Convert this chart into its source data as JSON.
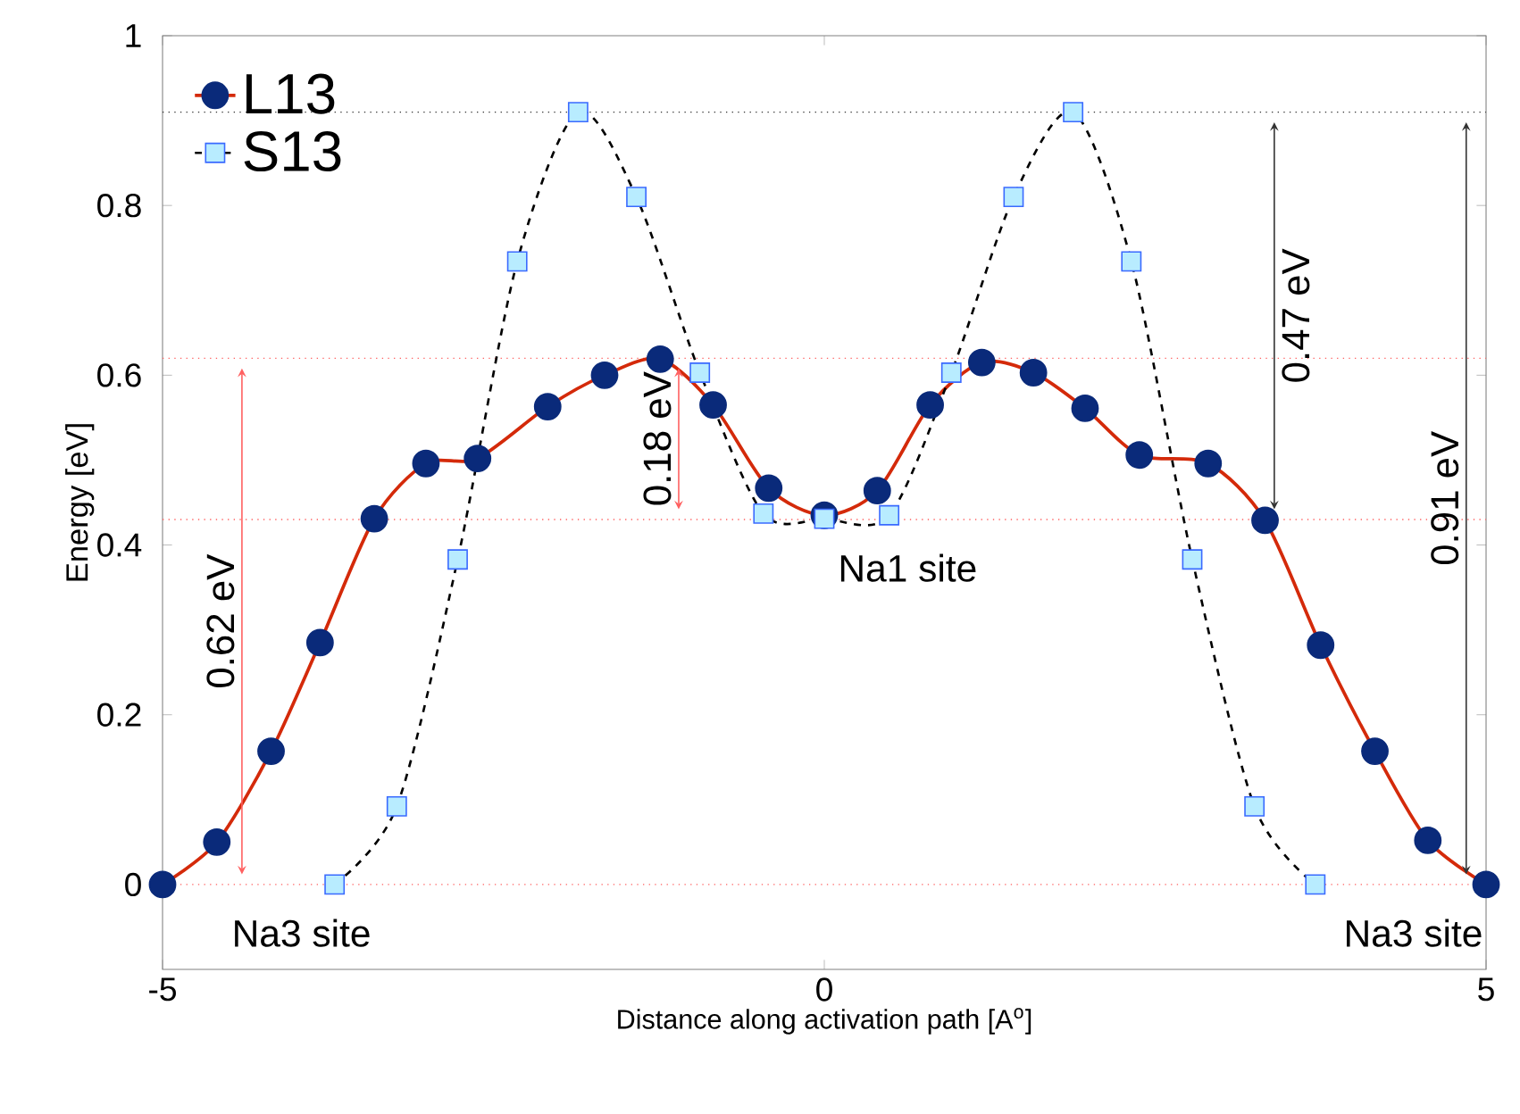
{
  "chart_data": {
    "type": "line",
    "xlabel": "Distance along activation path [A$^{o}$]",
    "ylabel": "Energy [eV]",
    "xlim": [
      -5,
      5
    ],
    "ylim": [
      -0.1,
      1
    ],
    "xticks": [
      -5,
      0,
      5
    ],
    "yticks": [
      0,
      0.2,
      0.4,
      0.6,
      0.8,
      1
    ],
    "grid": false,
    "legend": "top left",
    "series": [
      {
        "name": "L13",
        "color": "#d42a0a",
        "marker": "circle",
        "line_style": "solid",
        "x": [
          -5,
          -4.59,
          -4.18,
          -3.81,
          -3.4,
          -3.01,
          -2.62,
          -2.09,
          -1.66,
          -1.24,
          -0.84,
          -0.42,
          0,
          0.4,
          0.8,
          1.19,
          1.58,
          1.97,
          2.38,
          2.9,
          3.33,
          3.75,
          4.16,
          4.56,
          5
        ],
        "values": [
          0,
          0.05,
          0.157,
          0.285,
          0.431,
          0.496,
          0.502,
          0.563,
          0.6,
          0.619,
          0.565,
          0.467,
          0.435,
          0.464,
          0.565,
          0.615,
          0.603,
          0.561,
          0.506,
          0.496,
          0.429,
          0.282,
          0.157,
          0.052,
          0
        ]
      },
      {
        "name": "S13",
        "color": "#000000",
        "marker": "square",
        "line_style": "dashed",
        "x": [
          -3.7,
          -3.23,
          -2.77,
          -2.32,
          -1.86,
          -1.42,
          -0.94,
          -0.46,
          0,
          0.49,
          0.96,
          1.43,
          1.88,
          2.32,
          2.78,
          3.25,
          3.71
        ],
        "values": [
          0,
          0.092,
          0.383,
          0.734,
          0.91,
          0.81,
          0.603,
          0.437,
          0.431,
          0.435,
          0.603,
          0.81,
          0.91,
          0.734,
          0.383,
          0.092,
          0
        ]
      }
    ],
    "ref_lines": [
      {
        "axis": "y",
        "value": 0,
        "color": "#ff6060",
        "line_style": "dotted"
      },
      {
        "axis": "y",
        "value": 0.43,
        "color": "#ff6060",
        "line_style": "dotted"
      },
      {
        "axis": "y",
        "value": 0.62,
        "color": "#ff6060",
        "line_style": "dotted"
      },
      {
        "axis": "y",
        "value": 0.91,
        "color": "#333333",
        "line_style": "dotted"
      }
    ],
    "annotations": [
      "0.62 eV",
      "0.18 eV",
      "0.47 eV",
      "0.91 eV",
      "Na1 site",
      "Na3 site",
      "Na3 site"
    ]
  }
}
